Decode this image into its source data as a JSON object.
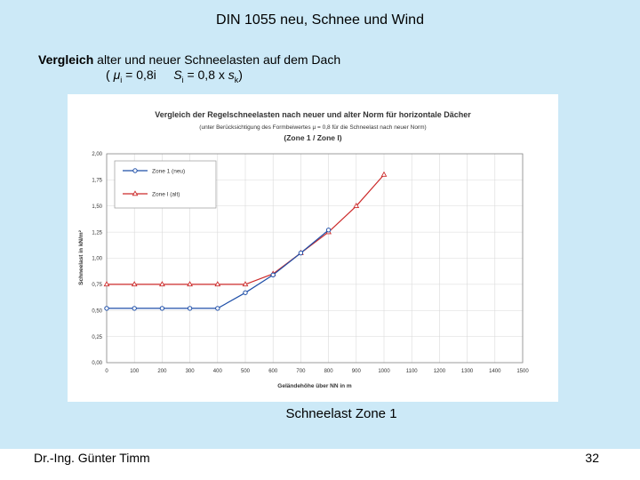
{
  "slide": {
    "title": "DIN 1055 neu, Schnee und Wind",
    "intro_bold": "Vergleich",
    "intro_rest": " alter und neuer Schneelasten auf dem Dach",
    "formula_open": "( ",
    "mu_symbol": "μ",
    "mu_sub": "i",
    "formula_eq1": " = 0,8i     ",
    "s_symbol": "S",
    "s_sub": "i",
    "formula_eq2": " = 0,8 x ",
    "sk_symbol": "s",
    "sk_sub": "k",
    "formula_close": ")",
    "caption": "Schneelast Zone 1",
    "author": "Dr.-Ing. Günter Timm",
    "page_number": "32"
  },
  "chart_data": {
    "type": "line",
    "title": "Vergleich der Regelschneelasten nach neuer und alter Norm für horizontale Dächer",
    "subtitle": "(unter Berücksichtigung des Formbeiwertes µ = 0,8 für die Schneelast nach neuer Norm)",
    "subtitle2": "(Zone 1 / Zone I)",
    "xlabel": "Geländehöhe über NN in m",
    "ylabel": "Schneelast in kN/m²",
    "xlim": [
      0,
      1500
    ],
    "ylim": [
      0,
      2.0
    ],
    "x_ticks": [
      "0",
      "100",
      "200",
      "300",
      "400",
      "500",
      "600",
      "700",
      "800",
      "900",
      "1000",
      "1100",
      "1200",
      "1300",
      "1400",
      "1500"
    ],
    "y_ticks": [
      "0,00",
      "0,25",
      "0,50",
      "0,75",
      "1,00",
      "1,25",
      "1,50",
      "1,75",
      "2,00"
    ],
    "grid": true,
    "legend_position": "top-left",
    "series": [
      {
        "name": "Zone 1 (neu)",
        "color": "#1f4fa8",
        "marker": "circle",
        "x": [
          0,
          100,
          200,
          300,
          400,
          500,
          600,
          700,
          800
        ],
        "y": [
          0.52,
          0.52,
          0.52,
          0.52,
          0.52,
          0.67,
          0.84,
          1.05,
          1.27
        ]
      },
      {
        "name": "Zone I (alt)",
        "color": "#cc2a2a",
        "marker": "triangle",
        "x": [
          0,
          100,
          200,
          300,
          400,
          500,
          600,
          700,
          800,
          900,
          1000
        ],
        "y": [
          0.75,
          0.75,
          0.75,
          0.75,
          0.75,
          0.75,
          0.85,
          1.05,
          1.25,
          1.5,
          1.8
        ]
      }
    ]
  }
}
